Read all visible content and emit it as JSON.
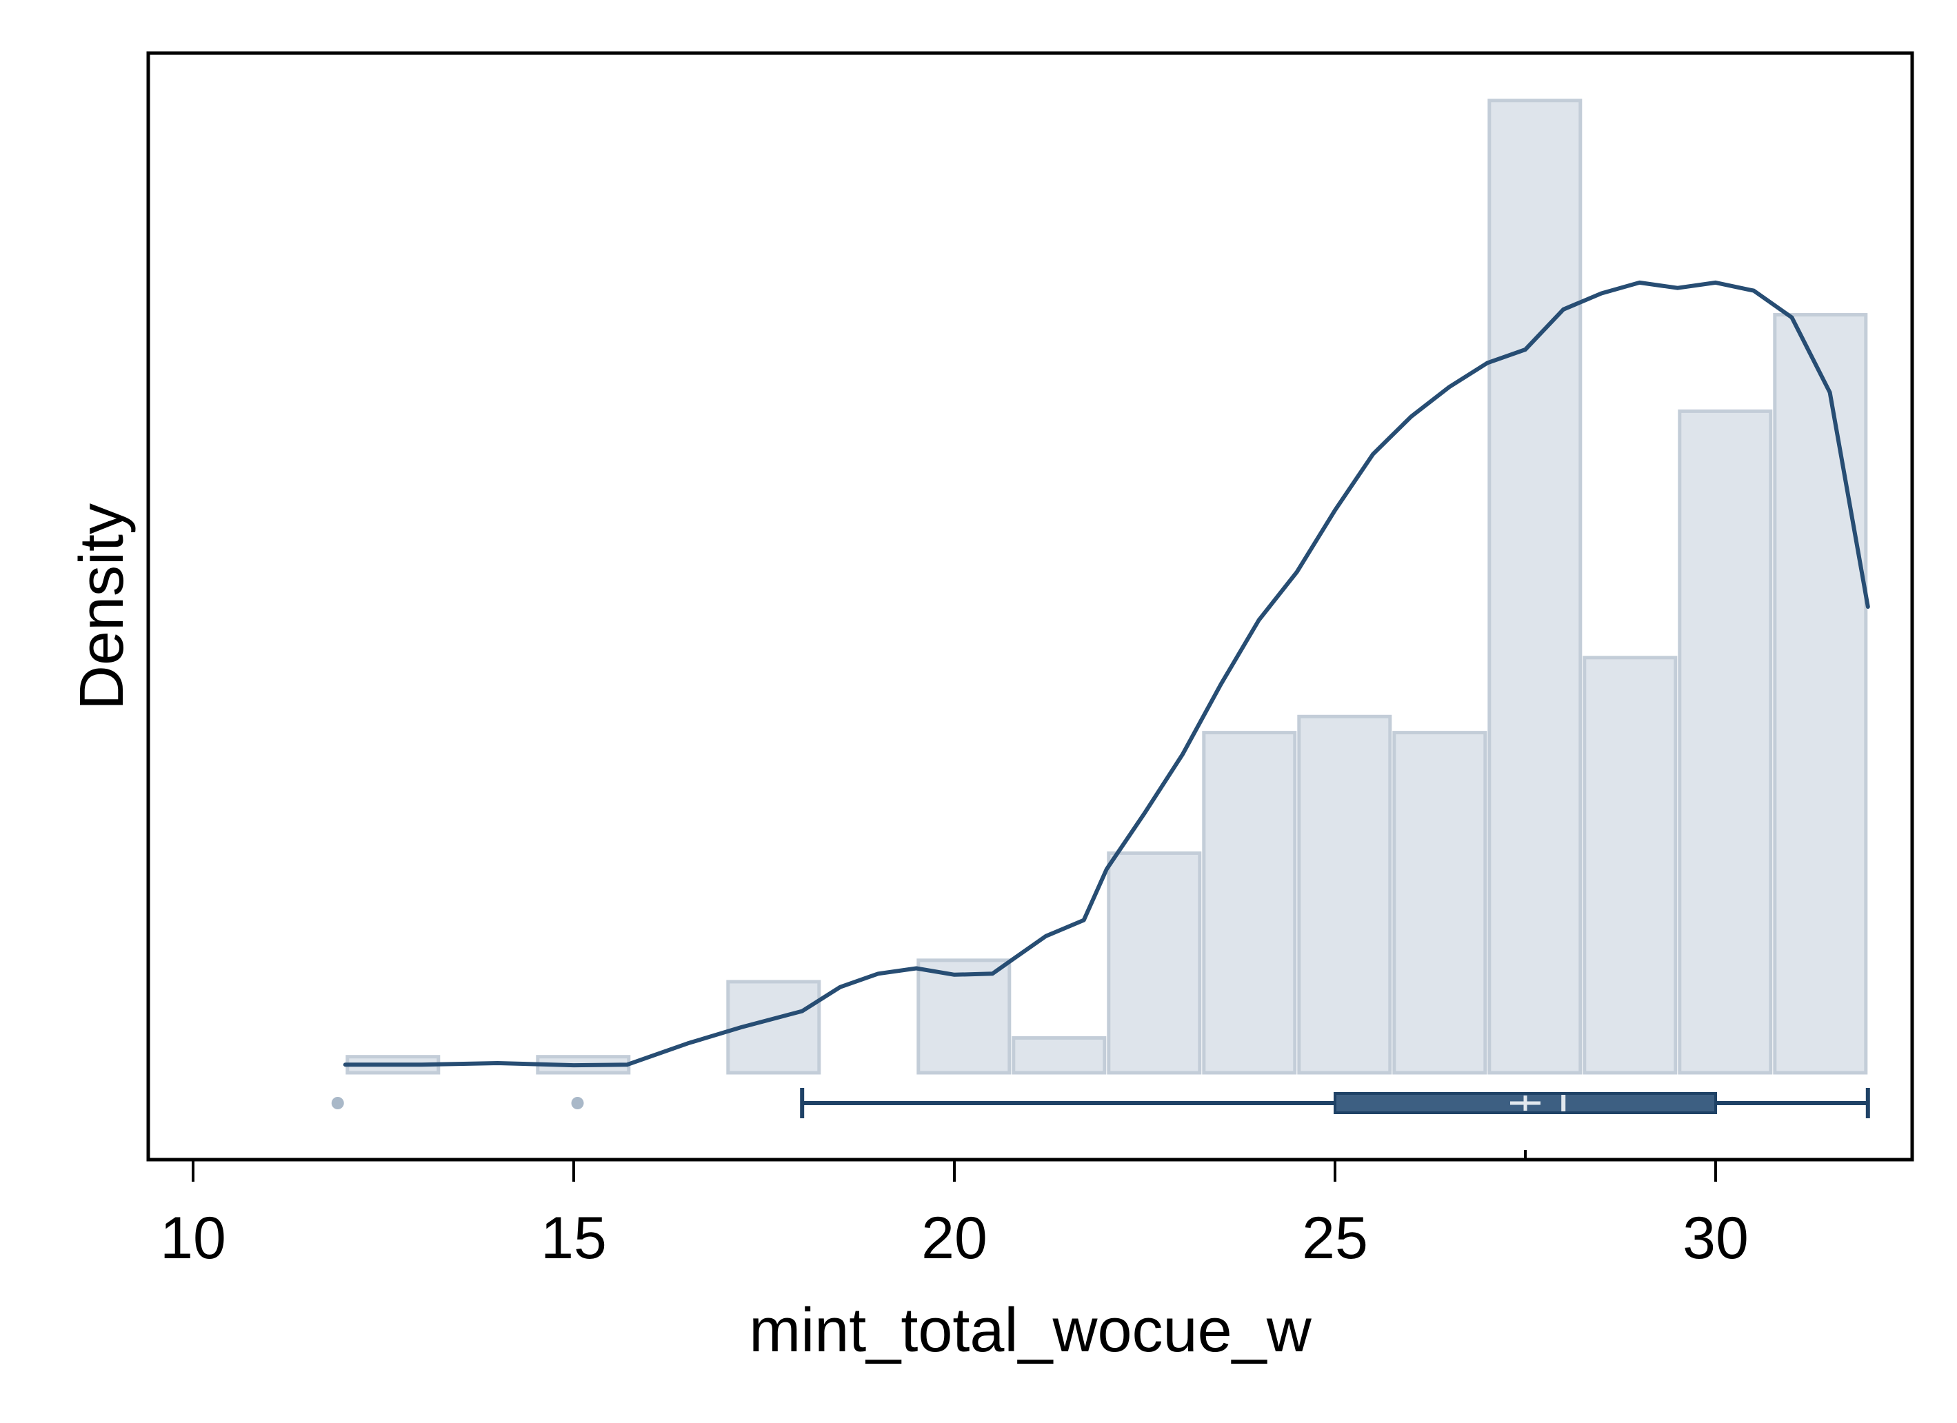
{
  "chart_data": {
    "type": "bar",
    "title": "",
    "xlabel": "mint_total_wocue_w",
    "ylabel": "Density",
    "xlim": [
      9.6,
      32.7
    ],
    "xticks": [
      10,
      15,
      20,
      25,
      30
    ],
    "grid": false,
    "colors": {
      "bar_fill": "#dee4eb",
      "bar_stroke": "#c3cdd8",
      "kde_line": "#274d73",
      "box_fill": "#3d5f82",
      "box_line": "#1f4266",
      "outlier": "#a9b8c8",
      "mean_mark": "#e2e8ee"
    },
    "histogram": {
      "bin_edges": [
        12.0,
        13.25,
        14.5,
        15.75,
        17.0,
        18.25,
        19.5,
        20.75,
        22.0,
        23.25,
        24.5,
        25.75,
        27.0,
        28.25,
        29.5,
        30.75,
        32.0
      ],
      "density": [
        0.003,
        0.0,
        0.003,
        0.0,
        0.017,
        0.0,
        0.021,
        0.0065,
        0.041,
        0.0635,
        0.0665,
        0.0635,
        0.1815,
        0.0775,
        0.1235,
        0.1415
      ]
    },
    "kde": {
      "x": [
        12.0,
        13.0,
        14.0,
        15.0,
        15.7,
        16.5,
        17.2,
        18.0,
        18.5,
        19.0,
        19.5,
        20.0,
        20.5,
        20.8,
        21.2,
        21.7,
        22.0,
        22.5,
        23.0,
        23.5,
        24.0,
        24.5,
        25.0,
        25.5,
        26.0,
        26.5,
        27.0,
        27.5,
        28.0,
        28.5,
        29.0,
        29.5,
        30.0,
        30.5,
        31.0,
        31.5,
        32.0
      ],
      "y": [
        0.0015,
        0.0015,
        0.0018,
        0.0014,
        0.0015,
        0.0055,
        0.0085,
        0.0115,
        0.016,
        0.0185,
        0.0195,
        0.0183,
        0.0185,
        0.0215,
        0.0255,
        0.0285,
        0.038,
        0.0485,
        0.0595,
        0.0725,
        0.0845,
        0.0935,
        0.105,
        0.1155,
        0.1225,
        0.128,
        0.1325,
        0.135,
        0.1425,
        0.1455,
        0.1475,
        0.1465,
        0.1475,
        0.146,
        0.141,
        0.127,
        0.087
      ]
    },
    "boxplot": {
      "whisker_low": 18.0,
      "q1": 25.0,
      "median": 28.0,
      "mean": 27.5,
      "q3": 30.0,
      "whisker_high": 32.0,
      "outliers": [
        11.9,
        15.05
      ]
    }
  }
}
